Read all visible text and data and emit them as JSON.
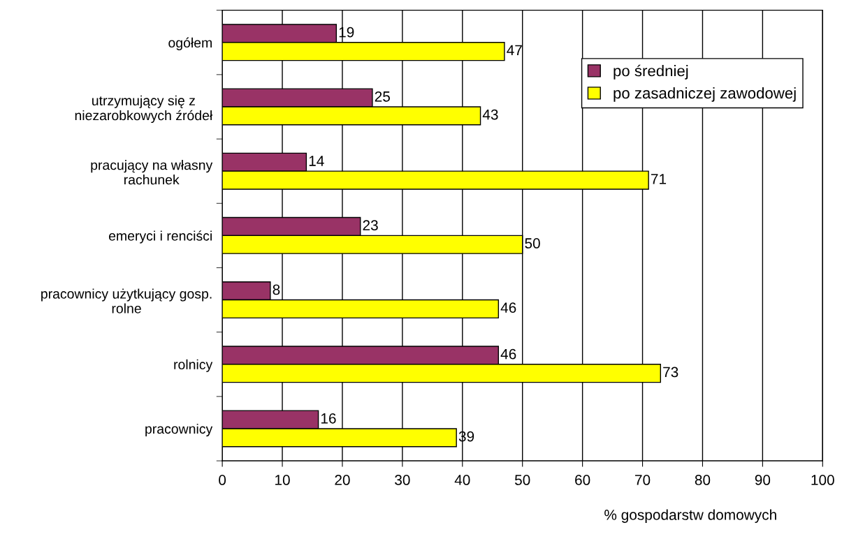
{
  "chart_data": {
    "type": "bar",
    "orientation": "horizontal",
    "categories": [
      "ogółem",
      "utrzymujący się z\nniezarobkowych źródeł",
      "pracujący na własny\nrachunek",
      "emeryci i renciści",
      "pracownicy użytkujący gosp.\nrolne",
      "rolnicy",
      "pracownicy"
    ],
    "series": [
      {
        "name": "po średniej",
        "color": "#993366",
        "values": [
          19,
          25,
          14,
          23,
          8,
          46,
          16
        ]
      },
      {
        "name": "po zasadniczej zawodowej",
        "color": "#ffff00",
        "values": [
          47,
          43,
          71,
          50,
          46,
          73,
          39
        ]
      }
    ],
    "xlim": [
      0,
      100
    ],
    "xticks": [
      0,
      10,
      20,
      30,
      40,
      50,
      60,
      70,
      80,
      90,
      100
    ],
    "xlabel": "% gospodarstw domowych",
    "grid": "x",
    "legend": "top right",
    "data_labels": true
  }
}
